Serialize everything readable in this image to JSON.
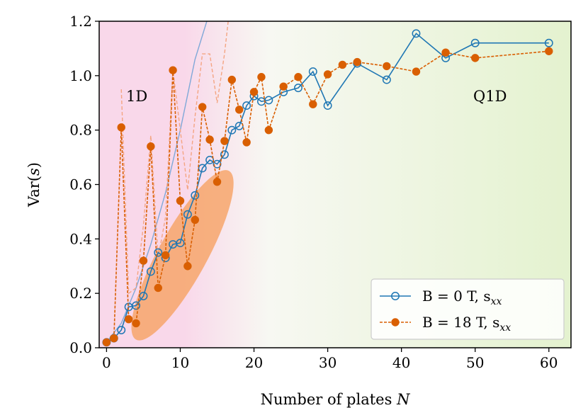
{
  "chart_data": {
    "type": "line",
    "xlabel": "Number of plates N",
    "ylabel": "Var(s)",
    "xlim": [
      -1,
      63
    ],
    "ylim": [
      0,
      1.2
    ],
    "xticks": [
      "0",
      "10",
      "20",
      "30",
      "40",
      "50",
      "60"
    ],
    "yticks": [
      "0.0",
      "0.2",
      "0.4",
      "0.6",
      "0.8",
      "1.0",
      "1.2"
    ],
    "regions": [
      {
        "name": "1D",
        "label": "1D",
        "color": "#f9d8ea"
      },
      {
        "name": "Q1D",
        "label": "Q1D",
        "color": "#e4f2cf"
      }
    ],
    "series": [
      {
        "name": "B = 0 T, s_xx",
        "legend_label": "B = 0 T, s",
        "legend_sub": "xx",
        "color": "#1f77b4",
        "marker": "open-circle",
        "linestyle": "solid",
        "x": [
          0,
          1,
          2,
          3,
          4,
          5,
          6,
          7,
          8,
          9,
          10,
          11,
          12,
          13,
          14,
          15,
          16,
          17,
          18,
          19,
          20,
          21,
          22,
          24,
          26,
          28,
          30,
          34,
          38,
          42,
          46,
          50,
          60
        ],
        "y": [
          0.02,
          0.035,
          0.065,
          0.15,
          0.155,
          0.19,
          0.28,
          0.35,
          0.33,
          0.38,
          0.385,
          0.49,
          0.56,
          0.66,
          0.69,
          0.675,
          0.71,
          0.8,
          0.815,
          0.89,
          0.925,
          0.905,
          0.91,
          0.94,
          0.955,
          1.015,
          0.89,
          1.045,
          0.985,
          1.155,
          1.065,
          1.12,
          1.12
        ]
      },
      {
        "name": "B = 18 T, s_xx",
        "legend_label": "B = 18 T, s",
        "legend_sub": "xx",
        "color": "#d95f02",
        "marker": "filled-circle",
        "linestyle": "dashed",
        "x": [
          0,
          1,
          2,
          3,
          4,
          5,
          6,
          7,
          8,
          9,
          10,
          11,
          12,
          13,
          14,
          15,
          16,
          17,
          18,
          19,
          20,
          21,
          22,
          24,
          26,
          28,
          30,
          32,
          34,
          38,
          42,
          46,
          50,
          60
        ],
        "y": [
          0.02,
          0.035,
          0.81,
          0.105,
          0.09,
          0.32,
          0.74,
          0.22,
          0.34,
          1.02,
          0.54,
          0.3,
          0.47,
          0.885,
          0.765,
          0.61,
          0.76,
          0.985,
          0.875,
          0.755,
          0.94,
          0.995,
          0.8,
          0.96,
          0.995,
          0.895,
          1.005,
          1.04,
          1.05,
          1.035,
          1.015,
          1.085,
          1.065,
          1.09
        ]
      }
    ],
    "guide_lines": [
      {
        "name": "light-blue-curve",
        "color": "#7fa8d8",
        "linestyle": "solid",
        "x": [
          0,
          2,
          4,
          6,
          8,
          10,
          12,
          13.6
        ],
        "y": [
          0.02,
          0.09,
          0.22,
          0.38,
          0.57,
          0.8,
          1.06,
          1.2
        ]
      },
      {
        "name": "light-orange-dashed-curve",
        "color": "#f4a582",
        "linestyle": "dashed",
        "x": [
          2,
          3,
          4,
          5,
          6,
          7,
          8,
          9,
          10,
          11,
          12,
          13,
          14,
          15,
          16,
          16.5
        ],
        "y": [
          0.95,
          0.2,
          0.22,
          0.45,
          0.78,
          0.33,
          0.48,
          1.02,
          0.8,
          0.58,
          0.85,
          1.08,
          1.08,
          0.9,
          1.08,
          1.2
        ]
      }
    ],
    "ellipse": {
      "color": "#f7a66b",
      "center": [
        10.4,
        0.34
      ],
      "end1": [
        4,
        0.03
      ],
      "end2": [
        16.6,
        0.65
      ],
      "half_width": 0.06
    }
  }
}
